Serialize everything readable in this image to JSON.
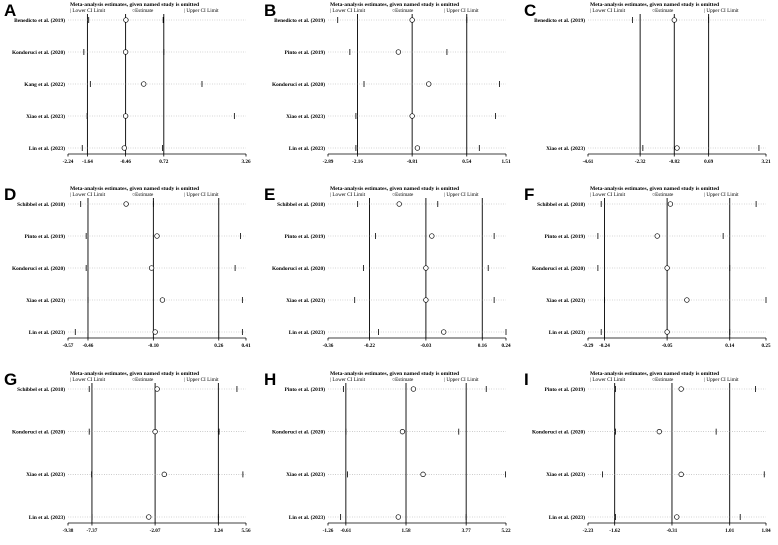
{
  "legend": {
    "title": "Meta-analysis estimates, given named study is omitted",
    "lower": "| Lower CI Limit",
    "estimate": "○Estimate",
    "upper": "| Upper CI Limit"
  },
  "chart_data": [
    {
      "type": "forest",
      "panel": "A",
      "xlim": [
        -2.24,
        3.26
      ],
      "ticks": [
        "-2.24",
        "-1.64",
        "-0.46",
        "0.72",
        "3.26"
      ],
      "overall": {
        "lower": -1.64,
        "estimate": -0.46,
        "upper": 0.72
      },
      "studies": [
        {
          "name": "Benedicto et al. (2019)",
          "lower": -1.6,
          "estimate": -0.45,
          "upper": 0.7
        },
        {
          "name": "Kondoruci et al. (2020)",
          "lower": -1.75,
          "estimate": -0.46,
          "upper": 0.72
        },
        {
          "name": "Kang et al. (2022)",
          "lower": -1.55,
          "estimate": 0.1,
          "upper": 1.9
        },
        {
          "name": "Xiao et al. (2023)",
          "lower": -1.65,
          "estimate": -0.46,
          "upper": 2.9
        },
        {
          "name": "Lin et al. (2023)",
          "lower": -1.8,
          "estimate": -0.5,
          "upper": 0.68
        }
      ]
    },
    {
      "type": "forest",
      "panel": "B",
      "xlim": [
        -2.89,
        1.51
      ],
      "ticks": [
        "-2.89",
        "-2.16",
        "-0.81",
        "0.54",
        "1.51"
      ],
      "overall": {
        "lower": -2.16,
        "estimate": -0.81,
        "upper": 0.54
      },
      "studies": [
        {
          "name": "Benedicto et al. (2019)",
          "lower": -2.65,
          "estimate": -0.81,
          "upper": 0.54
        },
        {
          "name": "Pinto et al. (2019)",
          "lower": -2.35,
          "estimate": -1.15,
          "upper": 0.05
        },
        {
          "name": "Kondoruci et al. (2020)",
          "lower": -2.0,
          "estimate": -0.4,
          "upper": 1.35
        },
        {
          "name": "Xiao et al. (2023)",
          "lower": -2.2,
          "estimate": -0.81,
          "upper": 1.25
        },
        {
          "name": "Lin et al. (2023)",
          "lower": -2.2,
          "estimate": -0.68,
          "upper": 0.85
        }
      ]
    },
    {
      "type": "forest",
      "panel": "C",
      "xlim": [
        -4.61,
        3.21
      ],
      "ticks": [
        "-4.61",
        "-2.32",
        "-0.82",
        "0.69",
        "3.21"
      ],
      "overall": {
        "lower": -2.32,
        "estimate": -0.82,
        "upper": 0.69
      },
      "studies": [
        {
          "name": "Benedicto et al. (2019)",
          "lower": -2.65,
          "estimate": -0.82,
          "upper": 0.69
        },
        {
          "name": "Xiao et al. (2023)",
          "lower": -2.2,
          "estimate": -0.7,
          "upper": 2.9
        }
      ]
    },
    {
      "type": "forest",
      "panel": "D",
      "xlim": [
        -0.57,
        0.41
      ],
      "ticks": [
        "-0.57",
        "-0.46",
        "-0.10",
        "0.26",
        "0.41"
      ],
      "overall": {
        "lower": -0.46,
        "estimate": -0.1,
        "upper": 0.26
      },
      "studies": [
        {
          "name": "Schibbel et al. (2018)",
          "lower": -0.5,
          "estimate": -0.25,
          "upper": -0.1
        },
        {
          "name": "Pinto et al. (2019)",
          "lower": -0.47,
          "estimate": -0.08,
          "upper": 0.38
        },
        {
          "name": "Kondoruci et al. (2020)",
          "lower": -0.47,
          "estimate": -0.11,
          "upper": 0.35
        },
        {
          "name": "Xiao et al. (2023)",
          "lower": -0.46,
          "estimate": -0.05,
          "upper": 0.39
        },
        {
          "name": "Lin et al. (2023)",
          "lower": -0.53,
          "estimate": -0.09,
          "upper": 0.39
        }
      ]
    },
    {
      "type": "forest",
      "panel": "E",
      "xlim": [
        -0.36,
        0.24
      ],
      "ticks": [
        "-0.36",
        "-0.22",
        "-0.03",
        "0.16",
        "0.24"
      ],
      "overall": {
        "lower": -0.22,
        "estimate": -0.03,
        "upper": 0.16
      },
      "studies": [
        {
          "name": "Schibbel et al. (2018)",
          "lower": -0.26,
          "estimate": -0.12,
          "upper": 0.01
        },
        {
          "name": "Pinto et al. (2019)",
          "lower": -0.2,
          "estimate": -0.01,
          "upper": 0.2
        },
        {
          "name": "Kondoruci et al. (2020)",
          "lower": -0.24,
          "estimate": -0.03,
          "upper": 0.18
        },
        {
          "name": "Xiao et al. (2023)",
          "lower": -0.27,
          "estimate": -0.03,
          "upper": 0.2
        },
        {
          "name": "Lin et al. (2023)",
          "lower": -0.19,
          "estimate": 0.03,
          "upper": 0.24
        }
      ]
    },
    {
      "type": "forest",
      "panel": "F",
      "xlim": [
        -0.29,
        0.25
      ],
      "ticks": [
        "-0.29",
        "-0.24",
        "-0.05",
        "0.14",
        "0.25"
      ],
      "overall": {
        "lower": -0.24,
        "estimate": -0.05,
        "upper": 0.14
      },
      "studies": [
        {
          "name": "Schibbel et al. (2018)",
          "lower": -0.25,
          "estimate": -0.04,
          "upper": 0.22
        },
        {
          "name": "Pinto et al. (2019)",
          "lower": -0.26,
          "estimate": -0.08,
          "upper": 0.12
        },
        {
          "name": "Kondoruci et al. (2020)",
          "lower": -0.26,
          "estimate": -0.05,
          "upper": 0.14
        },
        {
          "name": "Xiao et al. (2023)",
          "lower": -0.24,
          "estimate": 0.01,
          "upper": 0.25
        },
        {
          "name": "Lin et al. (2023)",
          "lower": -0.25,
          "estimate": -0.05,
          "upper": 0.14
        }
      ]
    },
    {
      "type": "forest",
      "panel": "G",
      "xlim": [
        -9.38,
        5.56
      ],
      "ticks": [
        "-9.38",
        "-7.37",
        "-2.07",
        "3.24",
        "5.56"
      ],
      "overall": {
        "lower": -7.37,
        "estimate": -2.07,
        "upper": 3.24
      },
      "studies": [
        {
          "name": "Schibbel et al. (2018)",
          "lower": -7.6,
          "estimate": -1.9,
          "upper": 4.8
        },
        {
          "name": "Kondoruci et al. (2020)",
          "lower": -7.6,
          "estimate": -2.07,
          "upper": 3.3
        },
        {
          "name": "Xiao et al. (2023)",
          "lower": -7.4,
          "estimate": -1.3,
          "upper": 5.3
        },
        {
          "name": "Lin et al. (2023)",
          "lower": -7.37,
          "estimate": -2.6,
          "upper": 3.24
        }
      ]
    },
    {
      "type": "forest",
      "panel": "H",
      "xlim": [
        -1.26,
        5.22
      ],
      "ticks": [
        "-1.26",
        "-0.61",
        "1.58",
        "3.77",
        "5.22"
      ],
      "overall": {
        "lower": -0.61,
        "estimate": 1.58,
        "upper": 3.77
      },
      "studies": [
        {
          "name": "Pinto et al. (2019)",
          "lower": -0.7,
          "estimate": 1.85,
          "upper": 4.5
        },
        {
          "name": "Kondoruci et al. (2020)",
          "lower": -0.61,
          "estimate": 1.45,
          "upper": 3.5
        },
        {
          "name": "Xiao et al. (2023)",
          "lower": -0.55,
          "estimate": 2.2,
          "upper": 5.2
        },
        {
          "name": "Lin et al. (2023)",
          "lower": -0.8,
          "estimate": 1.3,
          "upper": 3.77
        }
      ]
    },
    {
      "type": "forest",
      "panel": "I",
      "xlim": [
        -2.23,
        1.84
      ],
      "ticks": [
        "-2.23",
        "-1.62",
        "-0.31",
        "1.01",
        "1.84"
      ],
      "overall": {
        "lower": -1.62,
        "estimate": -0.31,
        "upper": 1.01
      },
      "studies": [
        {
          "name": "Pinto et al. (2019)",
          "lower": -1.6,
          "estimate": -0.1,
          "upper": 1.6
        },
        {
          "name": "Kondoruci et al. (2020)",
          "lower": -1.6,
          "estimate": -0.6,
          "upper": 0.7
        },
        {
          "name": "Xiao et al. (2023)",
          "lower": -1.9,
          "estimate": -0.1,
          "upper": 1.8
        },
        {
          "name": "Lin et al. (2023)",
          "lower": -1.6,
          "estimate": -0.2,
          "upper": 1.25
        }
      ]
    }
  ]
}
